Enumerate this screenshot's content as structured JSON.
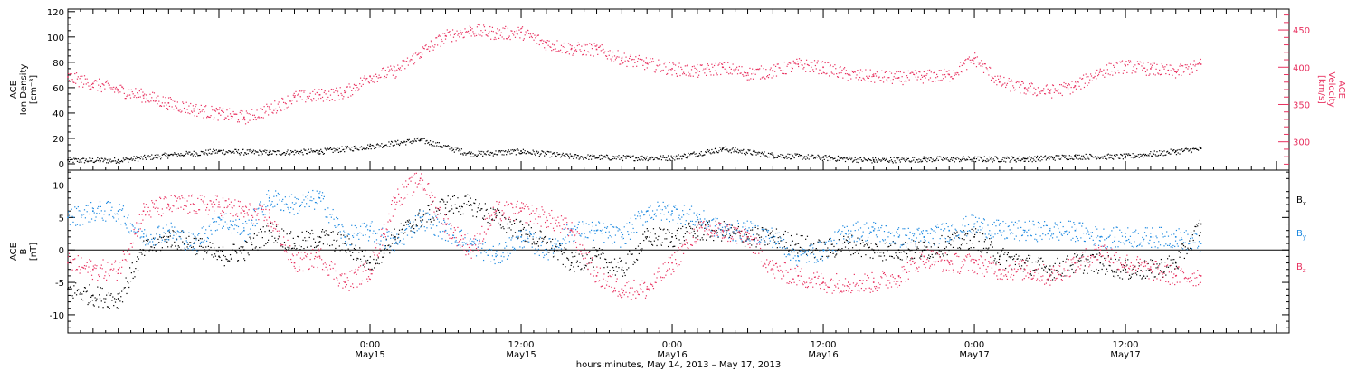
{
  "chart_data": [
    {
      "type": "scatter",
      "panel": "top",
      "ylabel_lines": [
        "ACE",
        "Ion Density",
        "[cm⁻³]"
      ],
      "ylim": [
        -5,
        122
      ],
      "yticks": [
        0,
        20,
        40,
        60,
        80,
        100,
        120
      ],
      "y2label_lines": [
        "ACE",
        "Velocity",
        "[km/s]"
      ],
      "y2lim": [
        262,
        478
      ],
      "y2ticks": [
        300,
        350,
        400,
        450
      ],
      "series": [
        {
          "name": "",
          "axis": "left",
          "color": "#000000",
          "x_hours": [
            0,
            4,
            8,
            12,
            16,
            20,
            24,
            28,
            32,
            36,
            40,
            44,
            48,
            52,
            56,
            60,
            64,
            68,
            72,
            76,
            80,
            84,
            88,
            90
          ],
          "values": [
            3,
            3,
            7,
            10,
            9,
            10,
            14,
            19,
            8,
            10,
            6,
            5,
            5,
            12,
            7,
            5,
            3,
            4,
            4,
            4,
            6,
            6,
            10,
            12
          ]
        },
        {
          "name": "",
          "axis": "right",
          "color": "#e8305f",
          "x_hours": [
            0,
            2,
            4,
            6,
            8,
            10,
            12,
            14,
            16,
            18,
            20,
            22,
            24,
            26,
            28,
            30,
            32,
            34,
            36,
            38,
            40,
            42,
            44,
            46,
            48,
            50,
            52,
            54,
            56,
            58,
            60,
            62,
            64,
            66,
            68,
            70,
            72,
            74,
            76,
            78,
            80,
            82,
            84,
            86,
            88,
            90
          ],
          "values": [
            387,
            378,
            370,
            362,
            352,
            344,
            338,
            333,
            344,
            360,
            363,
            366,
            388,
            395,
            420,
            442,
            450,
            446,
            447,
            432,
            425,
            424,
            412,
            405,
            398,
            395,
            400,
            392,
            395,
            404,
            400,
            390,
            388,
            386,
            388,
            390,
            412,
            380,
            372,
            368,
            375,
            395,
            402,
            398,
            394,
            404
          ]
        }
      ]
    },
    {
      "type": "scatter",
      "panel": "bottom",
      "ylabel_lines": [
        "ACE",
        "B",
        "[nT]"
      ],
      "ylim": [
        -12.8,
        12.3
      ],
      "yticks": [
        -10,
        -5,
        0,
        5,
        10
      ],
      "legend_position": "right",
      "series": [
        {
          "name": "B",
          "subscript": "x",
          "color": "#000000",
          "x_hours": [
            0,
            2,
            4,
            6,
            8,
            10,
            12,
            14,
            16,
            18,
            20,
            22,
            24,
            26,
            28,
            30,
            32,
            34,
            36,
            38,
            40,
            42,
            44,
            46,
            48,
            50,
            52,
            54,
            56,
            58,
            60,
            62,
            64,
            66,
            68,
            70,
            72,
            74,
            76,
            78,
            80,
            82,
            84,
            86,
            88,
            90
          ],
          "values": [
            -6,
            -7,
            -7.5,
            0,
            2,
            1,
            -1,
            0,
            3,
            1,
            2,
            1,
            -2,
            2,
            5,
            7,
            7,
            5,
            3,
            1,
            -2,
            -1,
            -3,
            2,
            2,
            3,
            3,
            2,
            2,
            1,
            0,
            1,
            0,
            0,
            0,
            1,
            2,
            -1,
            -2,
            -3,
            -2,
            -2,
            -3,
            -3,
            -2,
            4
          ]
        },
        {
          "name": "B",
          "subscript": "y",
          "color": "#1b88e0",
          "x_hours": [
            0,
            2,
            4,
            6,
            8,
            10,
            12,
            14,
            16,
            18,
            20,
            22,
            24,
            26,
            28,
            30,
            32,
            34,
            36,
            38,
            40,
            42,
            44,
            46,
            48,
            50,
            52,
            54,
            56,
            58,
            60,
            62,
            64,
            66,
            68,
            70,
            72,
            74,
            76,
            78,
            80,
            82,
            84,
            86,
            88,
            90
          ],
          "values": [
            5,
            6,
            6,
            2,
            3,
            1,
            5,
            3,
            8,
            7,
            8,
            2,
            3,
            1,
            5,
            3,
            1,
            -1,
            2,
            0,
            3,
            3,
            2,
            6,
            6,
            5,
            3,
            3,
            2,
            -1,
            0,
            3,
            3,
            2,
            2,
            3,
            4,
            3,
            3,
            3,
            3,
            2,
            2,
            2,
            2,
            1
          ]
        },
        {
          "name": "B",
          "subscript": "z",
          "color": "#e8305f",
          "x_hours": [
            0,
            2,
            4,
            6,
            8,
            10,
            12,
            14,
            16,
            18,
            20,
            22,
            24,
            26,
            28,
            30,
            32,
            34,
            36,
            38,
            40,
            42,
            44,
            46,
            48,
            50,
            52,
            54,
            56,
            58,
            60,
            62,
            64,
            66,
            68,
            70,
            72,
            74,
            76,
            78,
            80,
            82,
            84,
            86,
            88,
            90
          ],
          "values": [
            -2,
            -3,
            -3,
            6,
            7,
            7,
            7,
            6,
            5,
            -2,
            -1,
            -5,
            -3,
            8,
            11,
            4,
            0,
            6,
            6,
            5,
            3,
            -4,
            -6,
            -6,
            -2,
            3,
            3,
            2,
            -3,
            -4,
            -5,
            -5,
            -5,
            -4,
            -1,
            -2,
            -2,
            -3,
            -3,
            -4,
            -2,
            0,
            -2,
            -3,
            -4,
            -4
          ]
        }
      ]
    }
  ],
  "x_axis": {
    "range_hours": [
      0,
      97
    ],
    "ticks": [
      {
        "hour": 24,
        "time": "0:00",
        "date": "May15"
      },
      {
        "hour": 36,
        "time": "12:00",
        "date": "May15"
      },
      {
        "hour": 48,
        "time": "0:00",
        "date": "May16"
      },
      {
        "hour": 60,
        "time": "12:00",
        "date": "May16"
      },
      {
        "hour": 72,
        "time": "0:00",
        "date": "May17"
      },
      {
        "hour": 84,
        "time": "12:00",
        "date": "May17"
      }
    ],
    "label": "hours:minutes, May 14, 2013 – May 17, 2013"
  }
}
